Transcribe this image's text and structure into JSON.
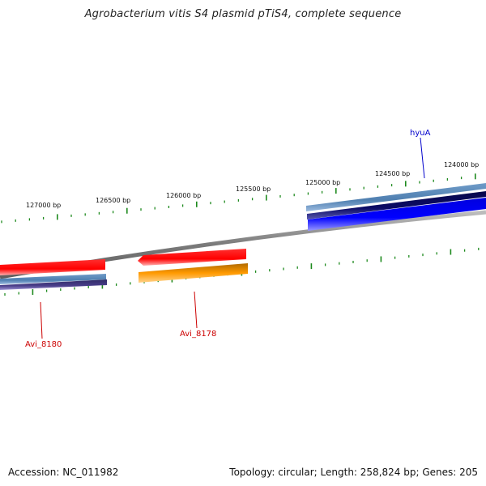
{
  "title": "Agrobacterium vitis S4 plasmid pTiS4, complete sequence",
  "footer": {
    "accession": "Accession: NC_011982",
    "topology": "Topology: circular; Length: 258,824 bp; Genes: 205"
  },
  "ruler": {
    "labels": [
      "127000 bp",
      "126500 bp",
      "126000 bp",
      "125500 bp",
      "125000 bp",
      "124500 bp",
      "124000 bp"
    ]
  },
  "genes": [
    {
      "name": "hyuA",
      "color": "#0000cc"
    },
    {
      "name": "Avi_8180",
      "color": "#cc0000"
    },
    {
      "name": "Avi_8178",
      "color": "#cc0000"
    }
  ],
  "colors": {
    "backbone": "#8c8c8c",
    "tick": "#1e8a1e",
    "red_feature": "#ff0000",
    "orange_feature": "#ff9900",
    "steelblue_feature": "#4f7fb0",
    "navy_feature": "#0b0b66",
    "blue_feature": "#0000ff",
    "purple_feature": "#4a3f8a"
  }
}
